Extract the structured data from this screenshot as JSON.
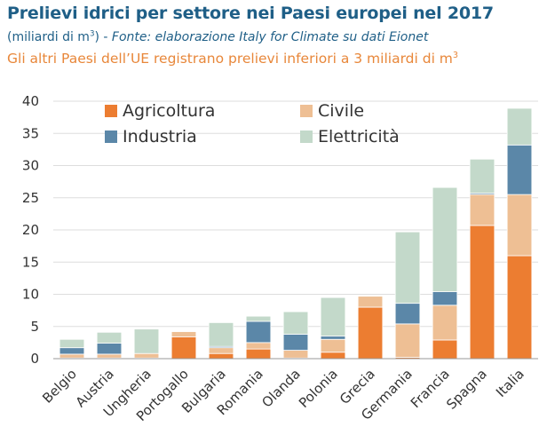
{
  "header": {
    "title": "Prelievi idrici per settore nei Paesi europei nel 2017",
    "subtitle_unit": "(miliardi di m",
    "subtitle_unit_sup": "3",
    "subtitle_unit_close": ") - ",
    "subtitle_source": "Fonte: elaborazione Italy for Climate su dati Eionet",
    "note": "Gli altri Paesi dell’UE registrano prelievi inferiori a 3 miliardi di m",
    "note_sup": "3"
  },
  "chart_data": {
    "type": "bar",
    "stacked": true,
    "categories": [
      "Belgio",
      "Austria",
      "Ungheria",
      "Portogallo",
      "Bulgaria",
      "Romania",
      "Olanda",
      "Polonia",
      "Grecia",
      "Germania",
      "Francia",
      "Spagna",
      "Italia"
    ],
    "series": [
      {
        "name": "Agricoltura",
        "color": "#ec7d31",
        "values": [
          0.1,
          0.1,
          0.1,
          3.4,
          0.8,
          1.5,
          0.1,
          1.0,
          8.0,
          0.2,
          2.9,
          20.7,
          16.0
        ]
      },
      {
        "name": "Civile",
        "color": "#eebf94",
        "values": [
          0.6,
          0.6,
          0.7,
          0.8,
          0.9,
          1.0,
          1.2,
          2.0,
          1.7,
          5.2,
          5.4,
          4.8,
          9.5
        ]
      },
      {
        "name": "Industria",
        "color": "#5b87a8",
        "values": [
          1.0,
          1.7,
          0.0,
          0.0,
          0.2,
          3.3,
          2.5,
          0.5,
          0.0,
          3.2,
          2.1,
          0.2,
          7.7
        ]
      },
      {
        "name": "Elettricità",
        "color": "#c3d9ca",
        "values": [
          1.3,
          1.7,
          3.8,
          0.0,
          3.7,
          0.8,
          3.5,
          6.0,
          0.0,
          11.1,
          16.2,
          5.3,
          5.7
        ]
      }
    ],
    "ylim": [
      0,
      40
    ],
    "yticks": [
      0,
      5,
      10,
      15,
      20,
      25,
      30,
      35,
      40
    ],
    "grid": true,
    "legend_position": "top-left, two columns",
    "xlabel": "",
    "ylabel": ""
  }
}
